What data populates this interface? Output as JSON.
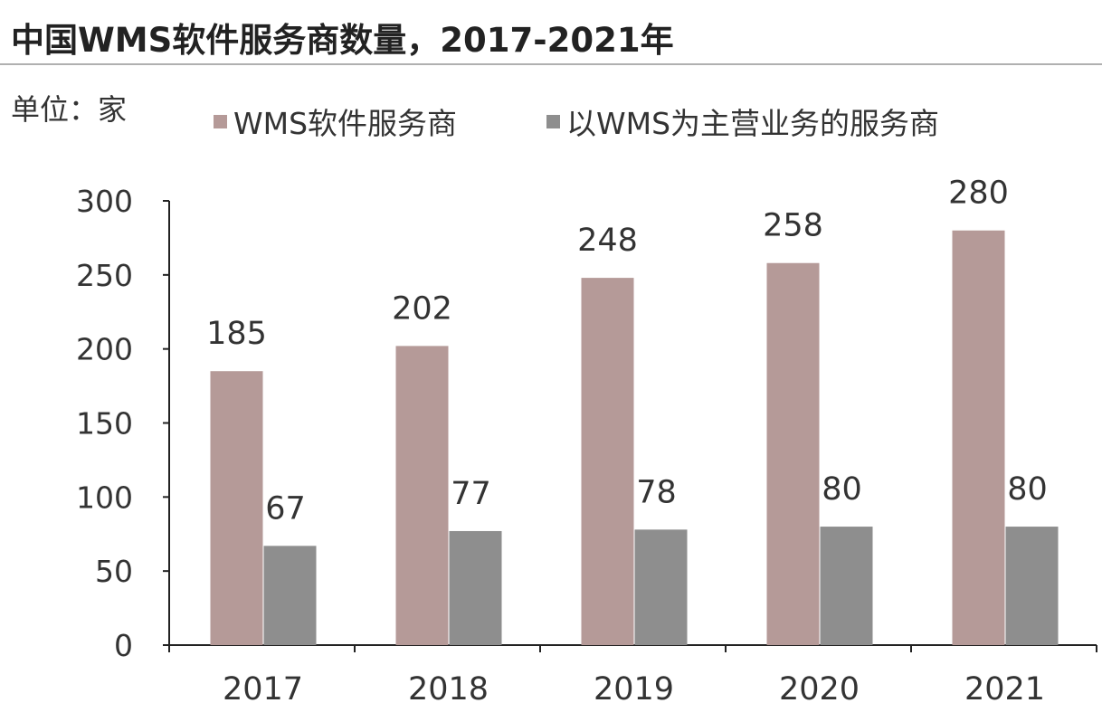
{
  "chart_data": {
    "type": "bar",
    "title": "中国WMS软件服务商数量，2017-2021年",
    "unit_label": "单位：家",
    "categories": [
      "2017",
      "2018",
      "2019",
      "2020",
      "2021"
    ],
    "series": [
      {
        "name": "WMS软件服务商",
        "values": [
          185,
          202,
          248,
          258,
          280
        ],
        "color": "#b59a98"
      },
      {
        "name": "以WMS为主营业务的服务商",
        "values": [
          67,
          77,
          78,
          80,
          80
        ],
        "color": "#8e8e8e"
      }
    ],
    "ylim": [
      0,
      300
    ],
    "yticks": [
      0,
      50,
      100,
      150,
      200,
      250,
      300
    ],
    "grid": false,
    "legend": "top",
    "data_labels": true
  }
}
